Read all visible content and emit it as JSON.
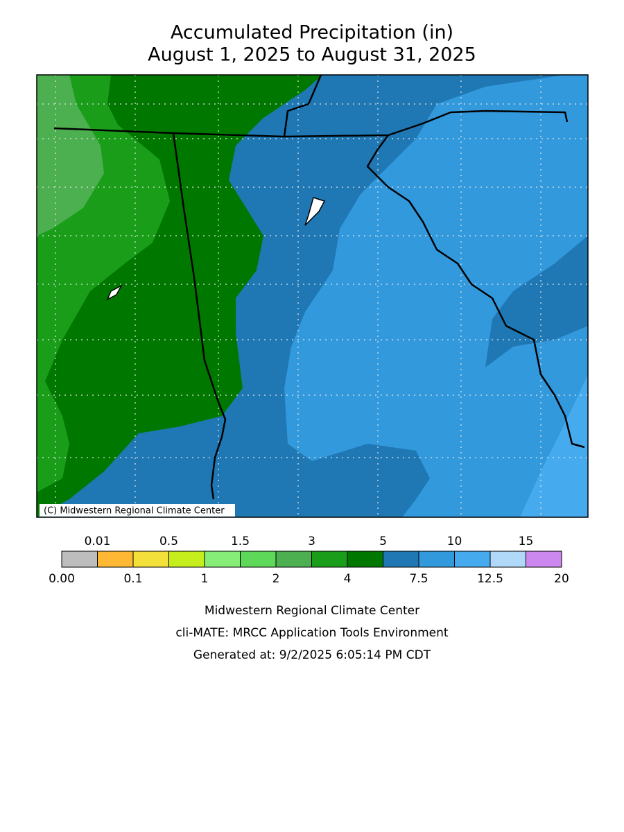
{
  "header": {
    "title_lines": [
      "Accumulated Precipitation (in)",
      "August 1, 2025 to August 31, 2025"
    ]
  },
  "map": {
    "credit": "(C) Midwestern Regional Climate Center"
  },
  "legend": {
    "boundaries": [
      {
        "value": 0,
        "label": "0.00"
      },
      0.01,
      0.1,
      0.5,
      1,
      1.5,
      2,
      3,
      4,
      5,
      7.5,
      10,
      12.5,
      15,
      20
    ],
    "colors": [
      "#bdbdbd",
      "#ffb833",
      "#f3e03a",
      "#c6ee1c",
      "#86ee78",
      "#5ed858",
      "#4caf50",
      "#1a9e1a",
      "#007800",
      "#1f78b4",
      "#3399dd",
      "#46aaee",
      "#b0d8f8",
      "#cc88ee"
    ]
  },
  "footer": {
    "lines": [
      "Midwestern Regional Climate Center",
      "cli-MATE: MRCC Application Tools Environment",
      "Generated at: 9/2/2025 6:05:14 PM CDT"
    ]
  }
}
